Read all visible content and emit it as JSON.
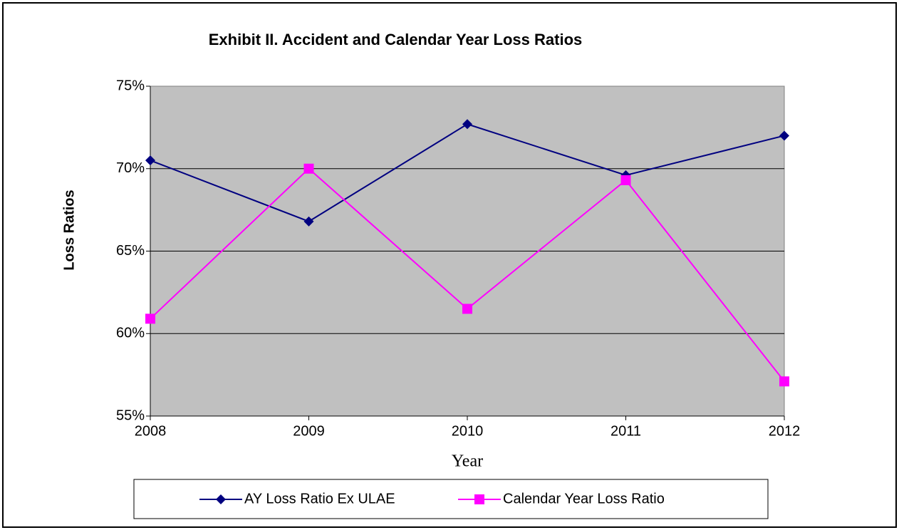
{
  "chart_data": {
    "type": "line",
    "title": "Exhibit II. Accident and Calendar Year Loss Ratios",
    "x_label": "Year",
    "y_label": "Loss Ratios",
    "x": [
      2008,
      2009,
      2010,
      2011,
      2012
    ],
    "xlim": [
      2008,
      2012
    ],
    "xticks": [
      2008,
      2009,
      2010,
      2011,
      2012
    ],
    "ylim": [
      55,
      75
    ],
    "yticks": [
      {
        "value": 55,
        "label": "55%"
      },
      {
        "value": 60,
        "label": "60%"
      },
      {
        "value": 65,
        "label": "65%"
      },
      {
        "value": 70,
        "label": "70%"
      },
      {
        "value": 75,
        "label": "75%"
      }
    ],
    "grid": true,
    "legend": "bottom",
    "series": [
      {
        "name": "AY Loss Ratio Ex ULAE",
        "color": "#000080",
        "marker": "diamond",
        "values": [
          70.5,
          66.8,
          72.7,
          69.6,
          72.0
        ]
      },
      {
        "name": "Calendar Year Loss Ratio",
        "color": "#ff00ff",
        "marker": "square",
        "values": [
          60.9,
          70.0,
          61.5,
          69.3,
          57.1
        ]
      }
    ]
  }
}
